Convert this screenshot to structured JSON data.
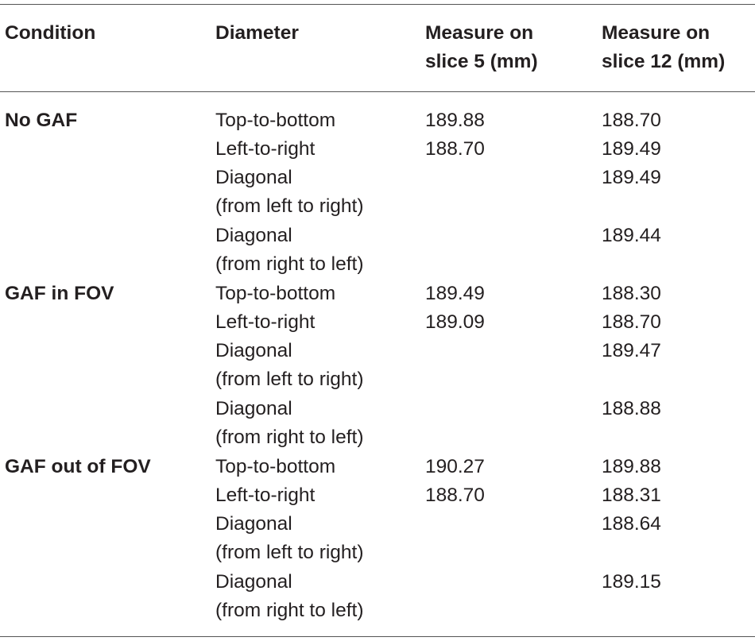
{
  "table": {
    "headers": {
      "condition": "Condition",
      "diameter": "Diameter",
      "slice5": "Measure on\nslice 5 (mm)",
      "slice12": "Measure on\nslice 12 (mm)"
    },
    "groups": [
      {
        "condition": "No GAF",
        "rows": [
          {
            "diameter": "Top-to-bottom",
            "slice5": "189.88",
            "slice12": "188.70"
          },
          {
            "diameter": "Left-to-right",
            "slice5": "188.70",
            "slice12": "189.49"
          },
          {
            "diameter": "Diagonal",
            "slice5": "",
            "slice12": "189.49"
          },
          {
            "diameter": "(from left to right)",
            "slice5": "",
            "slice12": ""
          },
          {
            "diameter": "Diagonal",
            "slice5": "",
            "slice12": "189.44"
          },
          {
            "diameter": "(from right to left)",
            "slice5": "",
            "slice12": ""
          }
        ]
      },
      {
        "condition": "GAF in FOV",
        "rows": [
          {
            "diameter": "Top-to-bottom",
            "slice5": "189.49",
            "slice12": "188.30"
          },
          {
            "diameter": "Left-to-right",
            "slice5": "189.09",
            "slice12": "188.70"
          },
          {
            "diameter": "Diagonal",
            "slice5": "",
            "slice12": "189.47"
          },
          {
            "diameter": "(from left to right)",
            "slice5": "",
            "slice12": ""
          },
          {
            "diameter": "Diagonal",
            "slice5": "",
            "slice12": "188.88"
          },
          {
            "diameter": "(from right to left)",
            "slice5": "",
            "slice12": ""
          }
        ]
      },
      {
        "condition": "GAF out of FOV",
        "rows": [
          {
            "diameter": "Top-to-bottom",
            "slice5": "190.27",
            "slice12": "189.88"
          },
          {
            "diameter": "Left-to-right",
            "slice5": "188.70",
            "slice12": "188.31"
          },
          {
            "diameter": "Diagonal",
            "slice5": "",
            "slice12": "188.64"
          },
          {
            "diameter": "(from left to right)",
            "slice5": "",
            "slice12": ""
          },
          {
            "diameter": "Diagonal",
            "slice5": "",
            "slice12": "189.15"
          },
          {
            "diameter": "(from right to left)",
            "slice5": "",
            "slice12": ""
          }
        ]
      }
    ]
  }
}
